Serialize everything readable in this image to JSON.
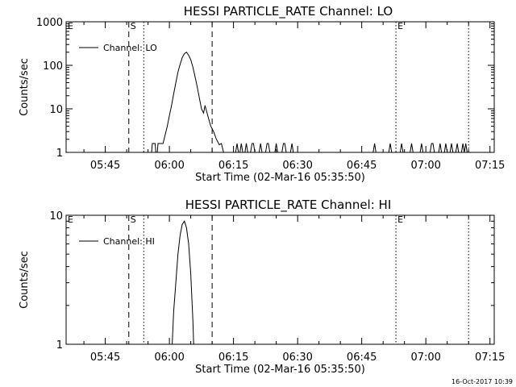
{
  "chart_data": [
    {
      "type": "line",
      "title": "HESSI PARTICLE_RATE Channel: LO",
      "xlabel": "Start Time (02-Mar-16 05:35:50)",
      "ylabel": "Counts/sec",
      "yscale": "log",
      "xlim": [
        "05:35:50",
        "07:16:00"
      ],
      "ylim": [
        1,
        1000
      ],
      "xticks": [
        "05:45",
        "06:00",
        "06:15",
        "06:30",
        "06:45",
        "07:00",
        "07:15"
      ],
      "yticks": [
        {
          "value": 1,
          "label": "1"
        },
        {
          "value": 10,
          "label": "10"
        },
        {
          "value": 100,
          "label": "100"
        },
        {
          "value": 1000,
          "label": "1000"
        }
      ],
      "legend": {
        "entries": [
          "Channel: LO"
        ],
        "position": "top-left"
      },
      "markers": [
        {
          "label": "E",
          "time": "05:35:50",
          "style": "solid"
        },
        {
          "label": "S",
          "time": "05:50:30",
          "style": "dashed"
        },
        {
          "label": "",
          "time": "05:54:00",
          "style": "dotted"
        },
        {
          "label": "",
          "time": "06:10:00",
          "style": "dashed"
        },
        {
          "label": "E",
          "time": "06:53:00",
          "style": "dotted"
        },
        {
          "label": "",
          "time": "07:10:00",
          "style": "dotted"
        }
      ],
      "series": [
        {
          "name": "Channel: LO",
          "points": [
            [
              "05:55:50",
              1
            ],
            [
              "05:56:00",
              1.6
            ],
            [
              "05:56:40",
              1.6
            ],
            [
              "05:56:50",
              1
            ],
            [
              "05:57:10",
              1
            ],
            [
              "05:57:20",
              1.6
            ],
            [
              "05:58:30",
              1.6
            ],
            [
              "05:59:00",
              2.5
            ],
            [
              "05:59:30",
              4
            ],
            [
              "06:00:00",
              7
            ],
            [
              "06:00:30",
              12
            ],
            [
              "06:01:00",
              22
            ],
            [
              "06:01:30",
              40
            ],
            [
              "06:02:00",
              70
            ],
            [
              "06:02:30",
              105
            ],
            [
              "06:03:00",
              150
            ],
            [
              "06:03:30",
              185
            ],
            [
              "06:04:00",
              200
            ],
            [
              "06:04:30",
              170
            ],
            [
              "06:05:00",
              135
            ],
            [
              "06:05:30",
              90
            ],
            [
              "06:06:00",
              55
            ],
            [
              "06:06:30",
              32
            ],
            [
              "06:07:00",
              18
            ],
            [
              "06:07:30",
              10
            ],
            [
              "06:08:00",
              8
            ],
            [
              "06:08:20",
              12
            ],
            [
              "06:08:40",
              9
            ],
            [
              "06:09:10",
              6
            ],
            [
              "06:09:40",
              4
            ],
            [
              "06:10:20",
              3
            ],
            [
              "06:11:00",
              2
            ],
            [
              "06:11:40",
              1.5
            ],
            [
              "06:12:10",
              1.6
            ],
            [
              "06:12:40",
              1
            ],
            [
              "06:15:30",
              1
            ],
            [
              "06:15:50",
              1.6
            ],
            [
              "06:16:10",
              1
            ],
            [
              "06:16:30",
              1
            ],
            [
              "06:16:50",
              1.6
            ],
            [
              "06:17:10",
              1
            ],
            [
              "06:17:40",
              1
            ],
            [
              "06:18:00",
              1.6
            ],
            [
              "06:18:20",
              1
            ],
            [
              "06:19:00",
              1
            ],
            [
              "06:19:20",
              1.6
            ],
            [
              "06:19:40",
              1.6
            ],
            [
              "06:20:00",
              1
            ],
            [
              "06:21:00",
              1
            ],
            [
              "06:21:20",
              1.6
            ],
            [
              "06:21:40",
              1
            ],
            [
              "06:22:30",
              1
            ],
            [
              "06:22:50",
              1.6
            ],
            [
              "06:23:10",
              1.6
            ],
            [
              "06:23:30",
              1
            ],
            [
              "06:24:40",
              1
            ],
            [
              "06:25:00",
              1.6
            ],
            [
              "06:25:20",
              1
            ],
            [
              "06:26:20",
              1
            ],
            [
              "06:26:40",
              1.6
            ],
            [
              "06:27:00",
              1.6
            ],
            [
              "06:27:20",
              1
            ],
            [
              "06:28:20",
              1
            ],
            [
              "06:28:40",
              1.6
            ],
            [
              "06:29:00",
              1
            ],
            [
              "06:47:40",
              1
            ],
            [
              "06:48:00",
              1.6
            ],
            [
              "06:48:20",
              1
            ],
            [
              "06:51:20",
              1
            ],
            [
              "06:51:40",
              1.6
            ],
            [
              "06:52:00",
              1
            ],
            [
              "06:54:00",
              1
            ],
            [
              "06:54:20",
              1.6
            ],
            [
              "06:54:40",
              1
            ],
            [
              "06:56:20",
              1
            ],
            [
              "06:56:40",
              1.6
            ],
            [
              "06:57:00",
              1
            ],
            [
              "06:58:40",
              1
            ],
            [
              "06:59:00",
              1.6
            ],
            [
              "06:59:20",
              1
            ],
            [
              "07:01:00",
              1
            ],
            [
              "07:01:20",
              1.6
            ],
            [
              "07:01:40",
              1.6
            ],
            [
              "07:02:00",
              1
            ],
            [
              "07:03:00",
              1
            ],
            [
              "07:03:20",
              1.6
            ],
            [
              "07:03:40",
              1
            ],
            [
              "07:04:20",
              1
            ],
            [
              "07:04:40",
              1.6
            ],
            [
              "07:05:00",
              1
            ],
            [
              "07:05:40",
              1
            ],
            [
              "07:06:00",
              1.6
            ],
            [
              "07:06:20",
              1
            ],
            [
              "07:07:00",
              1
            ],
            [
              "07:07:20",
              1.6
            ],
            [
              "07:07:40",
              1
            ],
            [
              "07:08:20",
              1
            ],
            [
              "07:08:40",
              1.6
            ],
            [
              "07:09:00",
              1
            ],
            [
              "07:09:20",
              1.6
            ],
            [
              "07:09:40",
              1
            ]
          ]
        }
      ]
    },
    {
      "type": "line",
      "title": "HESSI PARTICLE_RATE Channel: HI",
      "xlabel": "Start Time (02-Mar-16 05:35:50)",
      "ylabel": "Counts/sec",
      "yscale": "log",
      "xlim": [
        "05:35:50",
        "07:16:00"
      ],
      "ylim": [
        1,
        10
      ],
      "xticks": [
        "05:45",
        "06:00",
        "06:15",
        "06:30",
        "06:45",
        "07:00",
        "07:15"
      ],
      "yticks": [
        {
          "value": 1,
          "label": "1"
        },
        {
          "value": 10,
          "label": "10"
        }
      ],
      "legend": {
        "entries": [
          "Channel: HI"
        ],
        "position": "top-left"
      },
      "markers": [
        {
          "label": "E",
          "time": "05:35:50",
          "style": "solid"
        },
        {
          "label": "S",
          "time": "05:50:30",
          "style": "dashed"
        },
        {
          "label": "",
          "time": "05:54:00",
          "style": "dotted"
        },
        {
          "label": "",
          "time": "06:10:00",
          "style": "dashed"
        },
        {
          "label": "E",
          "time": "06:53:00",
          "style": "dotted"
        },
        {
          "label": "",
          "time": "07:10:00",
          "style": "dotted"
        }
      ],
      "series": [
        {
          "name": "Channel: HI",
          "points": [
            [
              "06:00:40",
              1
            ],
            [
              "06:01:00",
              1.8
            ],
            [
              "06:01:30",
              3
            ],
            [
              "06:02:00",
              5
            ],
            [
              "06:02:30",
              7
            ],
            [
              "06:03:00",
              8.5
            ],
            [
              "06:03:30",
              9
            ],
            [
              "06:04:00",
              8
            ],
            [
              "06:04:30",
              6
            ],
            [
              "06:05:00",
              3.5
            ],
            [
              "06:05:30",
              1.5
            ],
            [
              "06:05:40",
              1
            ]
          ]
        }
      ]
    }
  ],
  "timestamp": "16-Oct-2017 10:39"
}
